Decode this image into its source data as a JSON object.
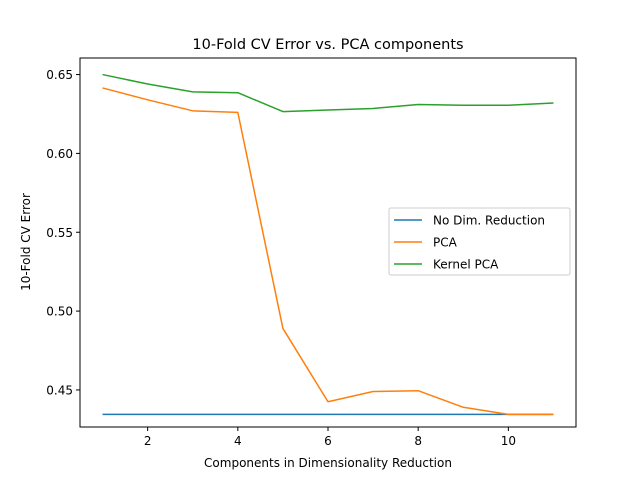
{
  "chart_data": {
    "type": "line",
    "title": "10-Fold CV Error vs. PCA components",
    "xlabel": "Components in Dimensionality Reduction",
    "ylabel": "10-Fold CV Error",
    "xlim": [
      0.5,
      11.5
    ],
    "ylim": [
      0.4265,
      0.6605
    ],
    "xticks": [
      2,
      4,
      6,
      8,
      10
    ],
    "yticks": [
      0.45,
      0.5,
      0.55,
      0.6,
      0.65
    ],
    "ytick_labels": [
      "0.45",
      "0.50",
      "0.55",
      "0.60",
      "0.65"
    ],
    "grid": false,
    "legend_position": "center-right",
    "x": [
      1,
      2,
      3,
      4,
      5,
      6,
      7,
      8,
      9,
      10,
      11
    ],
    "series": [
      {
        "name": "No Dim. Reduction",
        "color": "#1f77b4",
        "values": [
          0.4345,
          0.4345,
          0.4345,
          0.4345,
          0.4345,
          0.4345,
          0.4345,
          0.4345,
          0.4345,
          0.4345,
          0.4345
        ]
      },
      {
        "name": "PCA",
        "color": "#ff7f0e",
        "values": [
          0.6415,
          0.634,
          0.627,
          0.626,
          0.489,
          0.4425,
          0.449,
          0.4495,
          0.439,
          0.4345,
          0.4345
        ]
      },
      {
        "name": "Kernel PCA",
        "color": "#2ca02c",
        "values": [
          0.65,
          0.644,
          0.639,
          0.6385,
          0.6265,
          0.6275,
          0.6285,
          0.631,
          0.6305,
          0.6305,
          0.632
        ]
      }
    ]
  }
}
